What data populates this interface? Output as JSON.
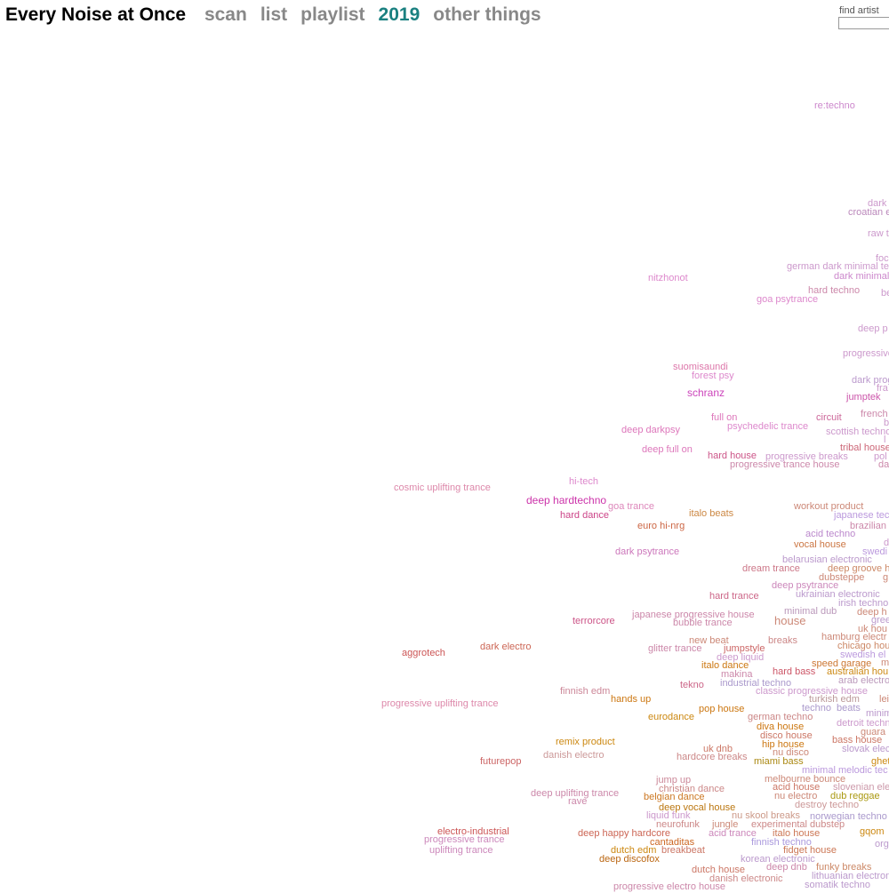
{
  "header": {
    "title": "Every Noise at Once",
    "nav": [
      "scan",
      "list",
      "playlist",
      "2019",
      "other things"
    ],
    "search_label": "find artist"
  },
  "genres": [
    "re:techno",
    "dark",
    "croatian e",
    "raw t",
    "foc",
    "german dark minimal te",
    "dark minimal",
    "nitzhonot",
    "hard techno",
    "be",
    "goa psytrance",
    "deep p",
    "progressive",
    "suomisaundi",
    "forest psy",
    "dark prog",
    "fra",
    "schranz",
    "jumptek",
    "french",
    "b",
    "full on",
    "circuit",
    "psychedelic trance",
    "scottish techno",
    "l",
    "deep darkpsy",
    "tribal house",
    "deep full on",
    "hard house",
    "progressive breaks",
    "pol",
    "progressive trance house",
    "da",
    "hi-tech",
    "cosmic uplifting trance",
    "deep hardtechno",
    "goa trance",
    "workout product",
    "japanese tec",
    "hard dance",
    "italo beats",
    "euro hi-nrg",
    "brazilian",
    "acid techno",
    "d",
    "vocal house",
    "swedi",
    "dark psytrance",
    "belarusian electronic",
    "dream trance",
    "deep groove h",
    "dubsteppe",
    "g",
    "deep psytrance",
    "ukrainian electronic",
    "hard trance",
    "irish techno",
    "minimal dub",
    "deep h",
    "japanese progressive house",
    "terrorcore",
    "house",
    "bubble trance",
    "gree",
    "uk hou",
    "new beat",
    "breaks",
    "hamburg electr",
    "aggrotech",
    "dark electro",
    "glitter trance",
    "jumpstyle",
    "chicago hou",
    "deep liquid",
    "swedish el",
    "italo dance",
    "speed garage",
    "m",
    "makina",
    "hard bass",
    "australian hou",
    "industrial techno",
    "arab electro",
    "tekno",
    "finnish edm",
    "classic progressive house",
    "hands up",
    "turkish edm",
    "lei",
    "progressive uplifting trance",
    "pop house",
    "techno",
    "beats",
    "minim",
    "eurodance",
    "german techno",
    "detroit techn",
    "diva house",
    "guara",
    "remix product",
    "disco house",
    "bass house",
    "uk dnb",
    "hip house",
    "slovak elec",
    "danish electro",
    "hardcore breaks",
    "nu disco",
    "futurepop",
    "miami bass",
    "ghet",
    "minimal melodic tec",
    "jump up",
    "melbourne bounce",
    "christian dance",
    "acid house",
    "slovenian ele",
    "deep uplifting trance",
    "belgian dance",
    "nu electro",
    "dub reggae",
    "rave",
    "destroy techno",
    "deep vocal house",
    "liquid funk",
    "nu skool breaks",
    "norwegian techno",
    "neurofunk",
    "jungle",
    "experimental dubstep",
    "electro-industrial",
    "deep happy hardcore",
    "acid trance",
    "italo house",
    "gqom",
    "progressive trance",
    "cantaditas",
    "finnish techno",
    "org",
    "uplifting trance",
    "dutch edm",
    "breakbeat",
    "fidget house",
    "deep discofox",
    "korean electronic",
    "dutch house",
    "deep dnb",
    "funky breaks",
    "danish electronic",
    "lithuanian electron",
    "progressive electro house",
    "somatik techno"
  ]
}
